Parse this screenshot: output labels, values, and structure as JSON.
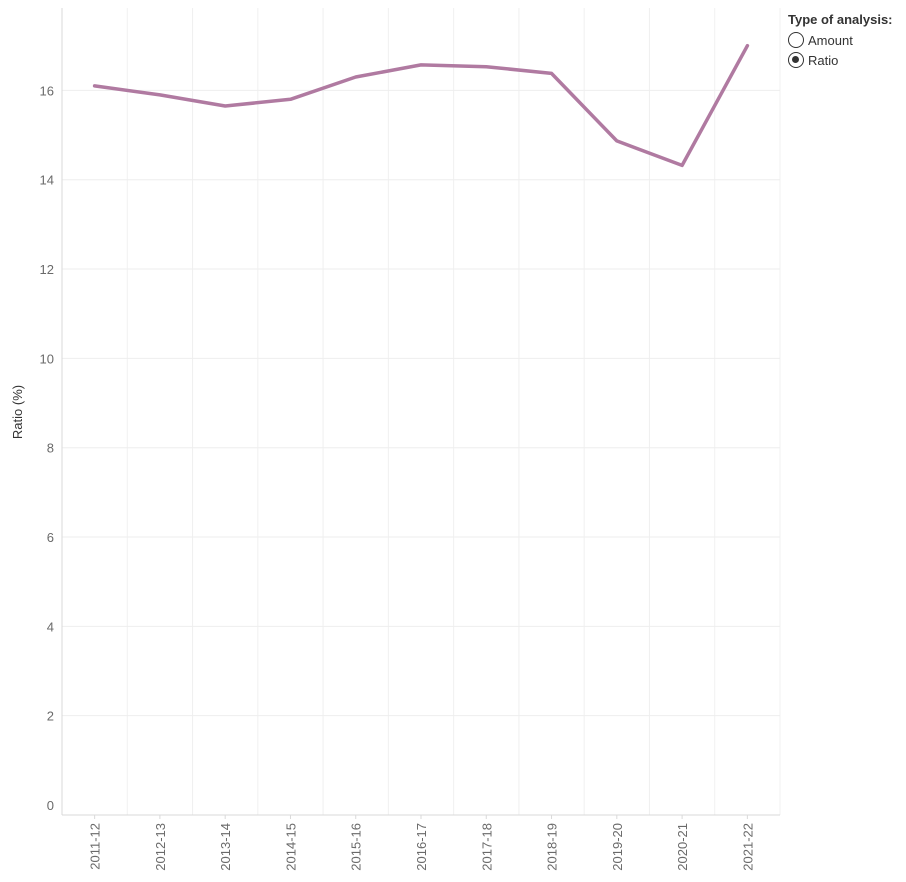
{
  "control": {
    "title": "Type of analysis:",
    "options": [
      {
        "label": "Amount",
        "selected": false
      },
      {
        "label": "Ratio",
        "selected": true
      }
    ]
  },
  "colors": {
    "line": "#b07aa1"
  },
  "chart_data": {
    "type": "line",
    "title": "",
    "xlabel": "",
    "ylabel": "Ratio (%)",
    "categories": [
      "2011-12",
      "2012-13",
      "2013-14",
      "2014-15",
      "2015-16",
      "2016-17",
      "2017-18",
      "2018-19",
      "2019-20",
      "2020-21",
      "2021-22"
    ],
    "series": [
      {
        "values": [
          16.1,
          15.9,
          15.65,
          15.8,
          16.3,
          16.57,
          16.53,
          16.38,
          14.87,
          14.32,
          17.0
        ]
      }
    ],
    "ylim": [
      0,
      17.8
    ],
    "yticks": [
      0,
      2,
      4,
      6,
      8,
      10,
      12,
      14,
      16
    ],
    "grid": true,
    "legend": "none"
  }
}
